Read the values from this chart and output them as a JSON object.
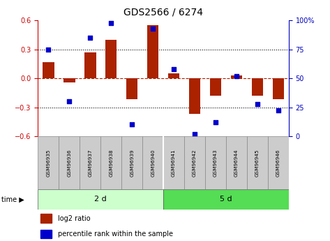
{
  "title": "GDS2566 / 6274",
  "samples": [
    "GSM96935",
    "GSM96936",
    "GSM96937",
    "GSM96938",
    "GSM96939",
    "GSM96940",
    "GSM96941",
    "GSM96942",
    "GSM96943",
    "GSM96944",
    "GSM96945",
    "GSM96946"
  ],
  "log2_ratio": [
    0.17,
    -0.04,
    0.27,
    0.4,
    -0.22,
    0.55,
    0.05,
    -0.37,
    -0.18,
    0.03,
    -0.18,
    -0.22
  ],
  "percentile_rank": [
    75,
    30,
    85,
    98,
    10,
    93,
    58,
    2,
    12,
    52,
    28,
    22
  ],
  "group1_count": 6,
  "group2_count": 6,
  "group1_label": "2 d",
  "group2_label": "5 d",
  "ylim_left": [
    -0.6,
    0.6
  ],
  "ylim_right": [
    0,
    100
  ],
  "yticks_left": [
    -0.6,
    -0.3,
    0.0,
    0.3,
    0.6
  ],
  "yticks_right": [
    0,
    25,
    50,
    75,
    100
  ],
  "bar_color": "#aa2200",
  "dot_color": "#0000cc",
  "group1_bg": "#ccffcc",
  "group2_bg": "#55dd55",
  "label_bg": "#cccccc",
  "legend_bar_label": "log2 ratio",
  "legend_dot_label": "percentile rank within the sample",
  "title_fontsize": 10,
  "tick_fontsize": 7,
  "axis_left_color": "#cc0000",
  "axis_right_color": "#0000bb"
}
